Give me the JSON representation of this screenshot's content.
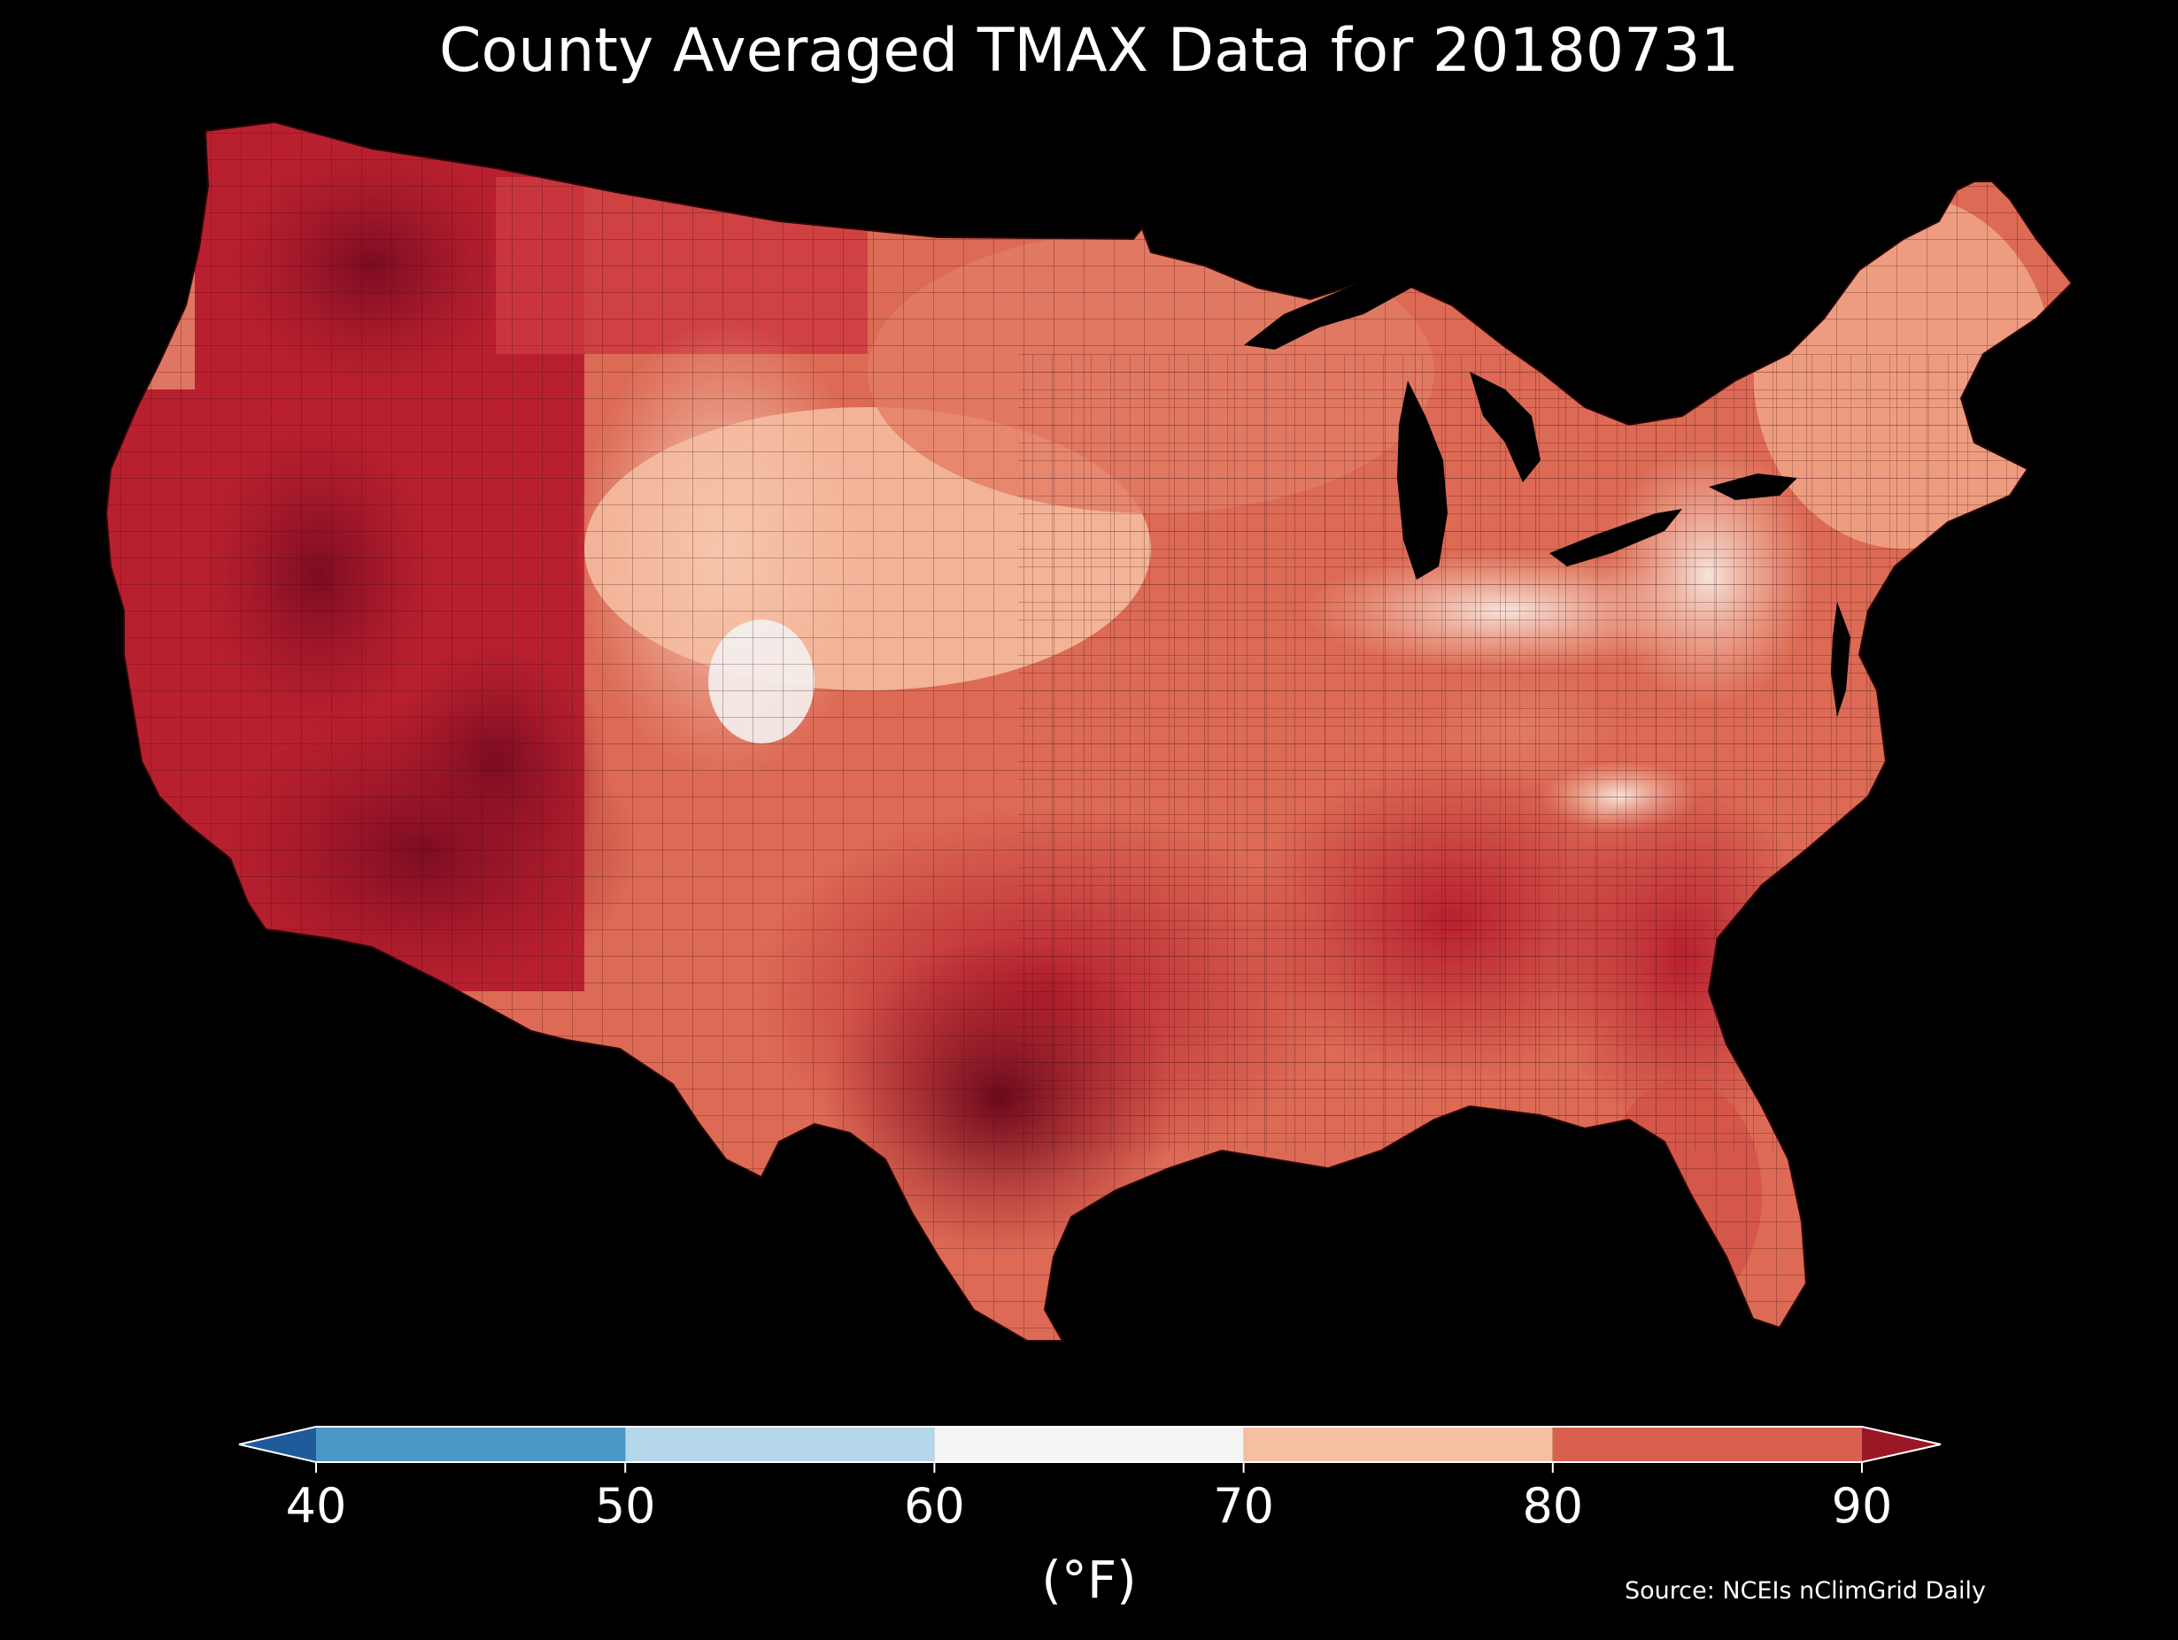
{
  "title": "County Averaged TMAX Data for 20180731",
  "source": "Source: NCEIs nClimGrid Daily",
  "colorbar": {
    "label": "(°F)",
    "ticks": [
      "40",
      "50",
      "60",
      "70",
      "80",
      "90"
    ],
    "extend": "both",
    "bins": [
      {
        "min": null,
        "max": 40,
        "color": "#1f5b9a"
      },
      {
        "min": 40,
        "max": 50,
        "color": "#4b98c8"
      },
      {
        "min": 50,
        "max": 60,
        "color": "#b5d7ea"
      },
      {
        "min": 60,
        "max": 70,
        "color": "#f5f5f5"
      },
      {
        "min": 70,
        "max": 80,
        "color": "#f7bfa2"
      },
      {
        "min": 80,
        "max": 90,
        "color": "#d9604f"
      },
      {
        "min": 90,
        "max": null,
        "color": "#9a1726"
      }
    ]
  },
  "map_colors": {
    "ocean": "#000000",
    "lakes": "#000000",
    "county_border": "#3a0a0a"
  }
}
